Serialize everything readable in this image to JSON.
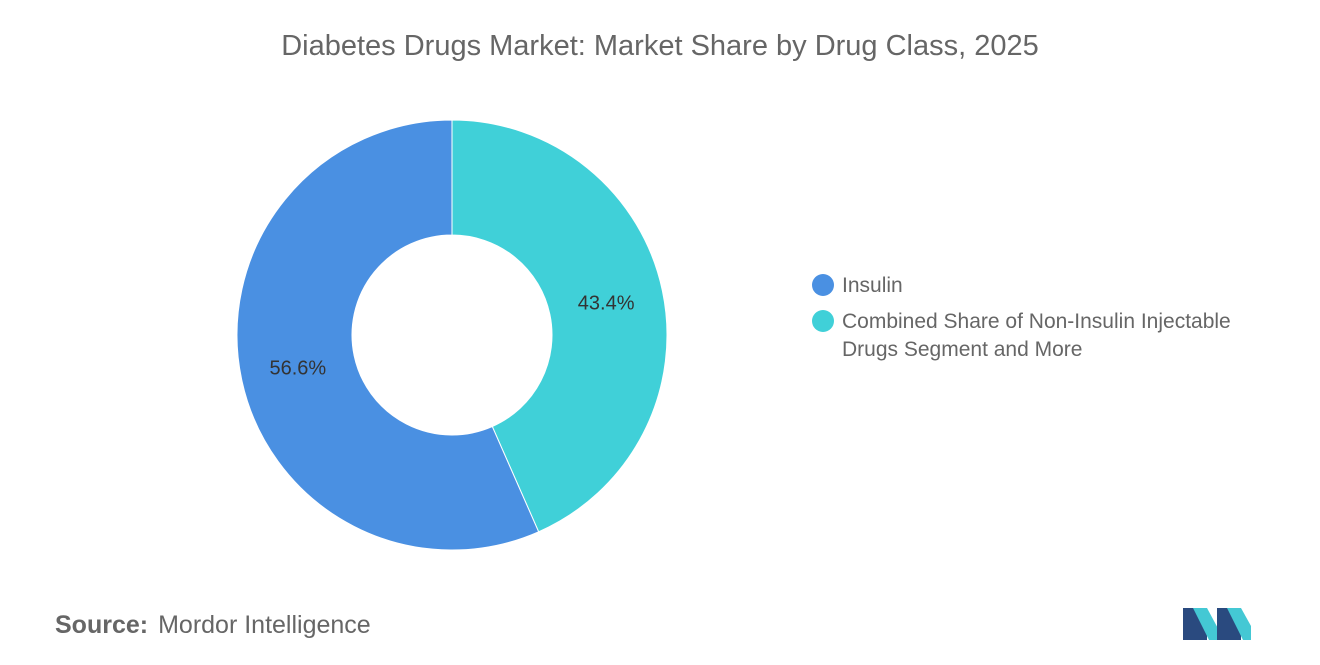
{
  "title": "Diabetes Drugs Market: Market Share by Drug Class, 2025",
  "chart_data": {
    "type": "pie",
    "variant": "donut",
    "title": "Diabetes Drugs Market: Market Share by Drug Class, 2025",
    "legend_position": "right",
    "slices": [
      {
        "name": "Insulin",
        "value": 56.6,
        "label": "56.6%",
        "color": "#4a90e2"
      },
      {
        "name": "Combined Share of Non-Insulin Injectable Drugs Segment and More",
        "value": 43.4,
        "label": "43.4%",
        "color": "#40d0d8"
      }
    ]
  },
  "legend": {
    "items": [
      {
        "label": "Insulin",
        "color": "#4a90e2"
      },
      {
        "label": "Combined Share of Non-Insulin Injectable Drugs Segment and More",
        "color": "#40d0d8"
      }
    ]
  },
  "source": {
    "key": "Source:",
    "value": "Mordor Intelligence"
  },
  "logo": {
    "icon": "mordor-intelligence-logo-icon",
    "colors": [
      "#2a4a7f",
      "#44c8d4"
    ]
  }
}
